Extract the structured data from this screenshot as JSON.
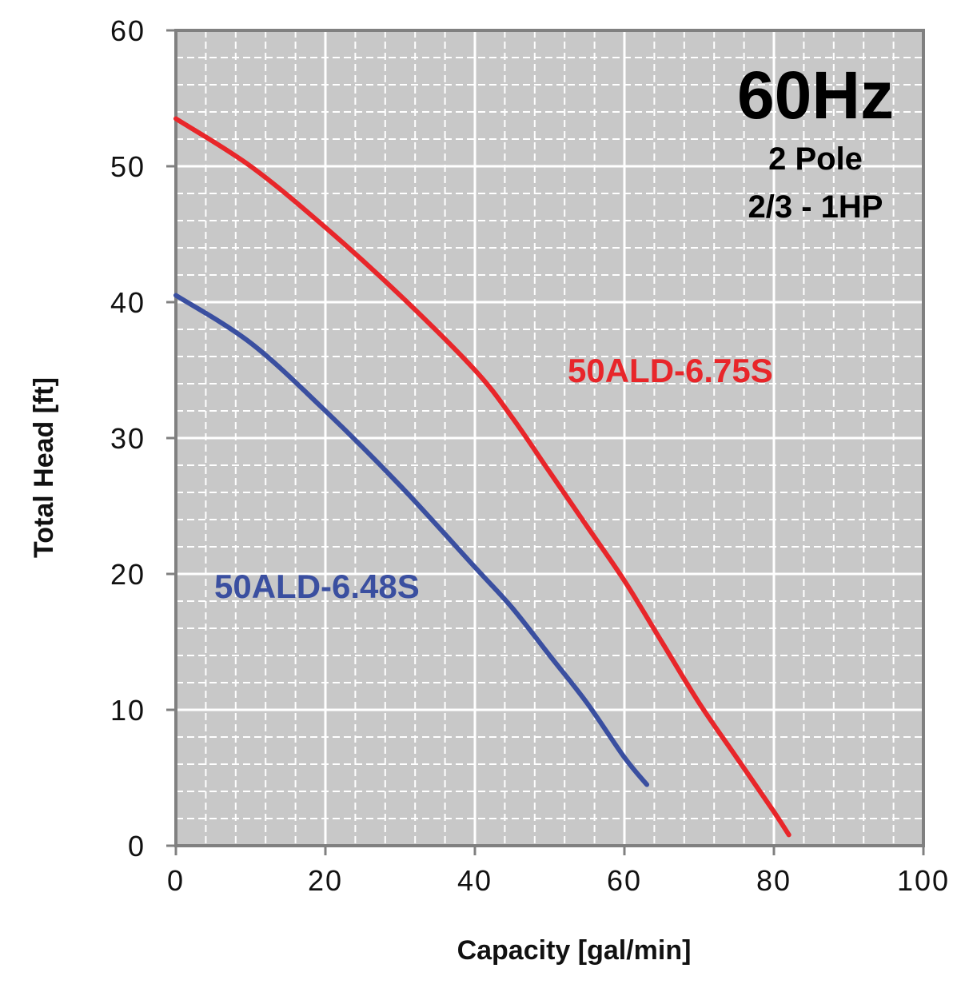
{
  "chart_data": {
    "type": "line",
    "xlabel": "Capacity [gal/min]",
    "ylabel": "Total Head [ft]",
    "xlim": [
      0,
      100
    ],
    "ylim": [
      0,
      60
    ],
    "x_ticks": [
      0,
      20,
      40,
      60,
      80,
      100
    ],
    "y_ticks": [
      0,
      10,
      20,
      30,
      40,
      50,
      60
    ],
    "grid": true,
    "annotations": {
      "frequency": "60Hz",
      "poles": "2 Pole",
      "power": "2/3 - 1HP"
    },
    "series": [
      {
        "name": "50ALD-6.75S",
        "color": "#e8262a",
        "points": [
          [
            0,
            53.5
          ],
          [
            10,
            50.0
          ],
          [
            20,
            45.5
          ],
          [
            30,
            40.5
          ],
          [
            40,
            35.0
          ],
          [
            45,
            31.5
          ],
          [
            50,
            27.5
          ],
          [
            55,
            23.5
          ],
          [
            60,
            19.5
          ],
          [
            65,
            15.0
          ],
          [
            70,
            10.5
          ],
          [
            75,
            6.5
          ],
          [
            80,
            2.5
          ],
          [
            82,
            0.8
          ]
        ]
      },
      {
        "name": "50ALD-6.48S",
        "color": "#3a4fa0",
        "points": [
          [
            0,
            40.5
          ],
          [
            10,
            37.0
          ],
          [
            20,
            32.0
          ],
          [
            30,
            26.5
          ],
          [
            40,
            20.5
          ],
          [
            45,
            17.5
          ],
          [
            50,
            14.0
          ],
          [
            55,
            10.5
          ],
          [
            60,
            6.5
          ],
          [
            63,
            4.5
          ]
        ]
      }
    ]
  }
}
